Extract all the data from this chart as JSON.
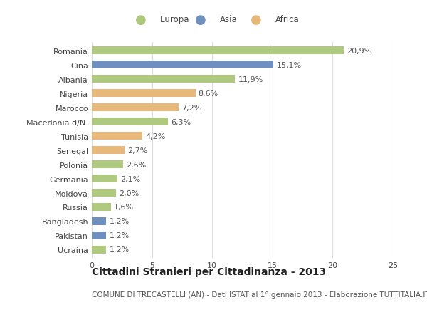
{
  "countries": [
    "Romania",
    "Cina",
    "Albania",
    "Nigeria",
    "Marocco",
    "Macedonia d/N.",
    "Tunisia",
    "Senegal",
    "Polonia",
    "Germania",
    "Moldova",
    "Russia",
    "Bangladesh",
    "Pakistan",
    "Ucraina"
  ],
  "values": [
    20.9,
    15.1,
    11.9,
    8.6,
    7.2,
    6.3,
    4.2,
    2.7,
    2.6,
    2.1,
    2.0,
    1.6,
    1.2,
    1.2,
    1.2
  ],
  "labels": [
    "20,9%",
    "15,1%",
    "11,9%",
    "8,6%",
    "7,2%",
    "6,3%",
    "4,2%",
    "2,7%",
    "2,6%",
    "2,1%",
    "2,0%",
    "1,6%",
    "1,2%",
    "1,2%",
    "1,2%"
  ],
  "continents": [
    "Europa",
    "Asia",
    "Europa",
    "Africa",
    "Africa",
    "Europa",
    "Africa",
    "Africa",
    "Europa",
    "Europa",
    "Europa",
    "Europa",
    "Asia",
    "Asia",
    "Europa"
  ],
  "colors": {
    "Europa": "#afc97e",
    "Asia": "#6f8fbf",
    "Africa": "#e8b87a"
  },
  "xlim": [
    0,
    25
  ],
  "xticks": [
    0,
    5,
    10,
    15,
    20,
    25
  ],
  "title": "Cittadini Stranieri per Cittadinanza - 2013",
  "subtitle": "COMUNE DI TRECASTELLI (AN) - Dati ISTAT al 1° gennaio 2013 - Elaborazione TUTTITALIA.IT",
  "bg_color": "#ffffff",
  "bar_height": 0.55,
  "grid_color": "#dddddd",
  "label_fontsize": 8,
  "tick_fontsize": 8,
  "title_fontsize": 10,
  "subtitle_fontsize": 7.5
}
